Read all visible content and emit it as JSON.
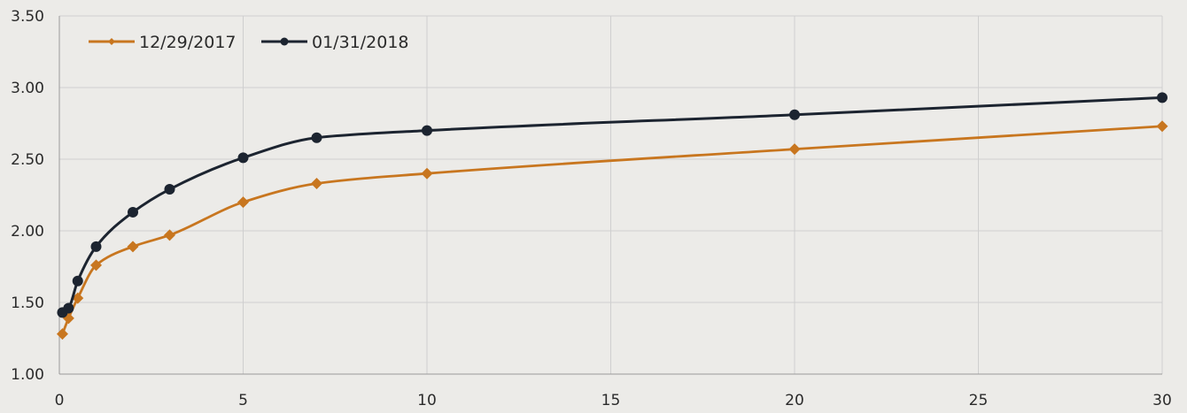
{
  "chart_data": {
    "type": "line",
    "title": "",
    "xlabel": "",
    "ylabel": "",
    "xlim": [
      0,
      30
    ],
    "ylim": [
      1.0,
      3.5
    ],
    "x_ticks": [
      "0",
      "5",
      "10",
      "15",
      "20",
      "25",
      "30"
    ],
    "y_ticks": [
      "1.00",
      "1.50",
      "2.00",
      "2.50",
      "3.00",
      "3.50"
    ],
    "grid": true,
    "legend_position": "top-left",
    "series": [
      {
        "name": "12/29/2017",
        "color": "#c8761f",
        "marker": "diamond",
        "x": [
          0.0833,
          0.25,
          0.5,
          1,
          2,
          3,
          5,
          7,
          10,
          20,
          30
        ],
        "y": [
          1.28,
          1.39,
          1.53,
          1.76,
          1.89,
          1.97,
          2.2,
          2.33,
          2.4,
          2.57,
          2.73
        ]
      },
      {
        "name": "01/31/2018",
        "color": "#1c2430",
        "marker": "circle",
        "x": [
          0.0833,
          0.25,
          0.5,
          1,
          2,
          3,
          5,
          7,
          10,
          20,
          30
        ],
        "y": [
          1.43,
          1.46,
          1.65,
          1.89,
          2.13,
          2.29,
          2.51,
          2.65,
          2.7,
          2.81,
          2.93
        ]
      }
    ]
  }
}
